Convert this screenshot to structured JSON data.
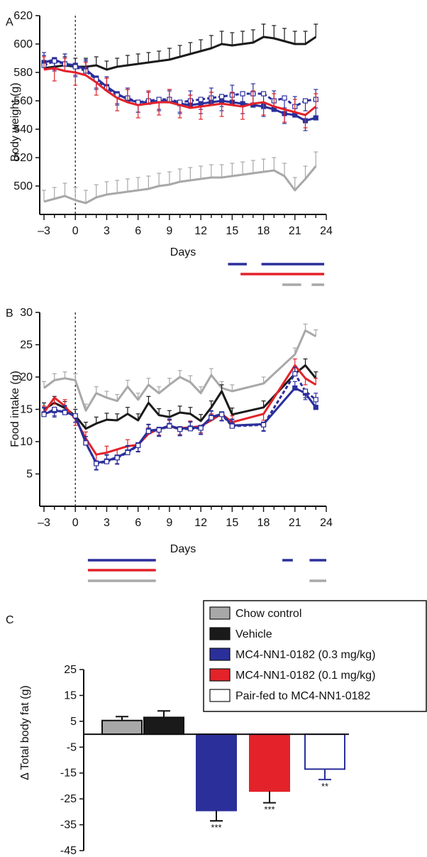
{
  "colors": {
    "chow": "#a8a8a8",
    "vehicle": "#1a1a1a",
    "high": "#2b2f9a",
    "low": "#e3222a",
    "pairfed": "#2b2f9a",
    "axis": "#111111"
  },
  "chart_data": [
    {
      "panel": "A",
      "type": "line",
      "xlabel": "Days",
      "ylabel": "Body weight (g)",
      "xlim": [
        -3,
        24
      ],
      "ylim": [
        480,
        620
      ],
      "xticks": [
        "–3",
        "0",
        "3",
        "6",
        "9",
        "12",
        "15",
        "18",
        "21",
        "24"
      ],
      "yticks": [
        "500",
        "520",
        "540",
        "560",
        "580",
        "600",
        "620"
      ],
      "series": [
        {
          "key": "vehicle",
          "x": [
            -3,
            -2,
            -1,
            0,
            1,
            2,
            3,
            4,
            5,
            6,
            7,
            8,
            9,
            10,
            11,
            12,
            13,
            14,
            15,
            16,
            17,
            18,
            19,
            20,
            21,
            22,
            23
          ],
          "y": [
            583,
            584,
            585,
            584,
            584,
            585,
            582,
            584,
            585,
            586,
            587,
            588,
            589,
            591,
            593,
            595,
            597,
            600,
            599,
            600,
            601,
            605,
            604,
            602,
            600,
            600,
            605
          ],
          "err": [
            5,
            6,
            6,
            6,
            6,
            6,
            6,
            6,
            7,
            7,
            7,
            7,
            8,
            8,
            8,
            8,
            9,
            9,
            9,
            9,
            9,
            9,
            9,
            9,
            9,
            9,
            9
          ],
          "dashed": false,
          "open": false
        },
        {
          "key": "chow",
          "x": [
            -3,
            -2,
            -1,
            0,
            1,
            2,
            3,
            4,
            5,
            6,
            7,
            8,
            9,
            10,
            11,
            12,
            13,
            14,
            15,
            16,
            17,
            18,
            19,
            20,
            21,
            22,
            23
          ],
          "y": [
            489,
            491,
            493,
            490,
            488,
            492,
            494,
            495,
            496,
            497,
            498,
            500,
            501,
            503,
            504,
            505,
            506,
            506,
            507,
            508,
            509,
            510,
            511,
            507,
            497,
            505,
            514
          ],
          "err": [
            8,
            8,
            9,
            9,
            9,
            9,
            9,
            9,
            9,
            9,
            9,
            9,
            9,
            9,
            9,
            9,
            9,
            9,
            9,
            9,
            9,
            9,
            9,
            9,
            9,
            9,
            10
          ],
          "dashed": false,
          "open": false
        },
        {
          "key": "high",
          "x": [
            -3,
            -2,
            -1,
            0,
            1,
            2,
            3,
            4,
            5,
            6,
            7,
            8,
            9,
            10,
            11,
            12,
            13,
            14,
            15,
            16,
            17,
            18,
            19,
            20,
            21,
            22,
            23
          ],
          "y": [
            587,
            589,
            586,
            585,
            582,
            576,
            570,
            565,
            561,
            559,
            559,
            560,
            560,
            558,
            557,
            558,
            559,
            560,
            559,
            558,
            557,
            556,
            554,
            551,
            550,
            546,
            548
          ],
          "err": [
            7,
            7,
            7,
            7,
            7,
            7,
            7,
            7,
            7,
            7,
            7,
            7,
            7,
            7,
            7,
            7,
            7,
            7,
            7,
            7,
            7,
            7,
            7,
            7,
            7,
            7,
            7
          ],
          "dashed": false,
          "open": false
        },
        {
          "key": "pairfed",
          "x": [
            -3,
            -2,
            -1,
            0,
            1,
            2,
            3,
            4,
            5,
            6,
            7,
            8,
            9,
            10,
            11,
            12,
            13,
            14,
            15,
            16,
            17,
            18,
            19,
            20,
            21,
            22,
            23
          ],
          "y": [
            585,
            588,
            586,
            584,
            581,
            575,
            569,
            564,
            562,
            559,
            560,
            561,
            561,
            559,
            560,
            561,
            562,
            563,
            564,
            565,
            565,
            565,
            560,
            562,
            556,
            560,
            561
          ],
          "err": [
            7,
            7,
            7,
            7,
            7,
            7,
            7,
            7,
            7,
            7,
            7,
            7,
            7,
            7,
            7,
            7,
            7,
            7,
            7,
            7,
            7,
            7,
            7,
            7,
            7,
            7,
            7
          ],
          "dashed": true,
          "open": true
        },
        {
          "key": "low",
          "x": [
            -3,
            -2,
            -1,
            0,
            1,
            2,
            3,
            4,
            5,
            6,
            7,
            8,
            9,
            10,
            11,
            12,
            13,
            14,
            15,
            16,
            17,
            18,
            19,
            20,
            21,
            22,
            23
          ],
          "y": [
            582,
            583,
            581,
            580,
            578,
            573,
            567,
            562,
            559,
            557,
            558,
            559,
            559,
            557,
            555,
            556,
            557,
            558,
            557,
            556,
            558,
            559,
            556,
            554,
            552,
            550,
            556
          ],
          "err": [
            9,
            9,
            9,
            9,
            9,
            9,
            9,
            9,
            9,
            9,
            9,
            9,
            9,
            9,
            9,
            9,
            9,
            9,
            9,
            9,
            9,
            9,
            9,
            9,
            9,
            9,
            9
          ],
          "dashed": false,
          "open": false
        }
      ],
      "significance_bars": [
        {
          "key": "high",
          "from": 14.6,
          "to": 16.4
        },
        {
          "key": "high",
          "from": 17.8,
          "to": 23.8
        },
        {
          "key": "low",
          "from": 15.8,
          "to": 23.8
        },
        {
          "key": "chow",
          "from": 19.8,
          "to": 21.6
        },
        {
          "key": "chow",
          "from": 22.6,
          "to": 23.8
        }
      ]
    },
    {
      "panel": "B",
      "type": "line",
      "xlabel": "Days",
      "ylabel": "Food intake (g)",
      "xlim": [
        -3,
        24
      ],
      "ylim": [
        0,
        30
      ],
      "xticks": [
        "–3",
        "0",
        "3",
        "6",
        "9",
        "12",
        "15",
        "18",
        "21",
        "24"
      ],
      "yticks": [
        "5",
        "10",
        "15",
        "20",
        "25",
        "30"
      ],
      "series": [
        {
          "key": "chow",
          "x": [
            -3,
            -2,
            -1,
            0,
            1,
            2,
            3,
            4,
            5,
            6,
            7,
            8,
            9,
            10,
            11,
            12,
            13,
            14,
            15,
            18,
            21,
            22,
            23
          ],
          "y": [
            18.3,
            19.5,
            19.8,
            19.5,
            14.8,
            17.5,
            16.8,
            16.3,
            18.5,
            16.5,
            18.8,
            17.5,
            18.8,
            20.0,
            19.2,
            17.5,
            20.3,
            18.3,
            17.8,
            19.0,
            23.5,
            27.2,
            26.3
          ],
          "err": [
            1,
            1,
            1,
            1,
            1,
            1,
            1,
            1,
            1,
            1,
            1,
            1,
            1,
            1,
            1,
            1,
            1,
            1,
            1,
            1,
            1,
            1,
            1
          ],
          "dashed": false,
          "open": false
        },
        {
          "key": "vehicle",
          "x": [
            -3,
            -2,
            -1,
            0,
            1,
            2,
            3,
            4,
            5,
            6,
            7,
            8,
            9,
            10,
            11,
            12,
            13,
            14,
            15,
            18,
            21,
            22,
            23
          ],
          "y": [
            15.0,
            16.0,
            15.2,
            14.0,
            12.0,
            12.8,
            13.4,
            13.3,
            14.3,
            13.3,
            16.0,
            14.1,
            13.8,
            14.5,
            14.3,
            13.2,
            15.3,
            17.8,
            14.2,
            15.3,
            20.5,
            21.8,
            19.8
          ],
          "err": [
            1,
            1,
            1,
            1,
            1,
            1,
            1,
            1,
            1,
            1,
            1,
            1,
            1,
            1,
            1,
            1,
            1,
            1,
            1,
            1,
            1,
            1,
            1
          ],
          "dashed": false,
          "open": false
        },
        {
          "key": "low",
          "x": [
            -3,
            -2,
            -1,
            0,
            1,
            2,
            3,
            4,
            5,
            6,
            7,
            8,
            9,
            10,
            11,
            12,
            13,
            14,
            15,
            18,
            21,
            22,
            23
          ],
          "y": [
            14.5,
            16.8,
            15.5,
            13.5,
            10.5,
            8.0,
            8.3,
            8.8,
            9.3,
            9.5,
            11.2,
            12.0,
            12.3,
            12.1,
            12.2,
            12.4,
            13.3,
            14.3,
            13.0,
            14.3,
            21.8,
            19.8,
            18.8
          ],
          "err": [
            1,
            1,
            1,
            1,
            1,
            1,
            1,
            1,
            1,
            1,
            1,
            1,
            1,
            1,
            1,
            1,
            1,
            1,
            1,
            1,
            1,
            1,
            1
          ],
          "dashed": false,
          "open": false
        },
        {
          "key": "high",
          "x": [
            -3,
            -2,
            -1,
            0,
            1,
            2,
            3,
            4,
            5,
            6,
            7,
            8,
            9,
            10,
            11,
            12,
            13,
            14,
            15,
            18,
            21,
            22,
            23
          ],
          "y": [
            14.3,
            14.8,
            14.6,
            14.0,
            9.8,
            6.7,
            7.0,
            7.6,
            8.4,
            9.5,
            11.7,
            11.9,
            12.5,
            12.0,
            12.1,
            12.2,
            13.8,
            14.3,
            12.5,
            12.7,
            18.3,
            17.5,
            15.3
          ],
          "err": [
            1,
            1,
            1,
            1,
            1,
            1,
            1,
            1,
            1,
            1,
            1,
            1,
            1,
            1,
            1,
            1,
            1,
            1,
            1,
            1,
            1,
            1,
            1
          ],
          "dashed": false,
          "open": false
        },
        {
          "key": "pairfed",
          "x": [
            -3,
            -2,
            -1,
            0,
            1,
            2,
            3,
            4,
            5,
            6,
            7,
            8,
            9,
            10,
            11,
            12,
            13,
            14,
            15,
            18,
            21,
            22,
            23
          ],
          "y": [
            14.2,
            15.0,
            14.5,
            14.0,
            9.8,
            6.6,
            6.9,
            7.5,
            8.3,
            9.4,
            11.6,
            11.8,
            12.4,
            11.9,
            12.0,
            12.1,
            13.7,
            14.2,
            12.4,
            12.6,
            20.5,
            17.8,
            16.5
          ],
          "err": [
            1,
            1,
            1,
            1,
            1,
            1,
            1,
            1,
            1,
            1,
            1,
            1,
            1,
            1,
            1,
            1,
            1,
            1,
            1,
            1,
            1,
            1,
            1
          ],
          "dashed": true,
          "open": true
        }
      ],
      "significance_bars": [
        {
          "key": "high",
          "from": 1.2,
          "to": 7.7
        },
        {
          "key": "low",
          "from": 1.2,
          "to": 7.7
        },
        {
          "key": "chow",
          "from": 1.2,
          "to": 7.7
        },
        {
          "key": "high",
          "from": 19.8,
          "to": 20.8
        },
        {
          "key": "high",
          "from": 22.4,
          "to": 24.0
        },
        {
          "key": "chow",
          "from": 22.4,
          "to": 24.0
        }
      ]
    },
    {
      "panel": "C",
      "type": "bar",
      "ylabel": "Δ Total body fat (g)",
      "ylim": [
        -45,
        25
      ],
      "yticks": [
        "25",
        "15",
        "5",
        "-5",
        "-15",
        "-25",
        "-35",
        "-45"
      ],
      "categories": [
        "Chow control",
        "Vehicle",
        "MC4-NN1-0182 (0.3 mg/kg)",
        "MC4-NN1-0182 (0.1 mg/kg)",
        "Pair-fed to MC4-NN1-0182"
      ],
      "keys": [
        "chow",
        "vehicle",
        "high",
        "low",
        "pairfed"
      ],
      "values": [
        5.3,
        6.5,
        -29.5,
        -22.0,
        -13.5
      ],
      "errors": [
        1.5,
        2.5,
        4.0,
        4.5,
        4.0
      ],
      "significance": [
        "",
        "",
        "***",
        "***",
        "**"
      ],
      "legend": [
        "Chow control",
        "Vehicle",
        "MC4-NN1-0182 (0.3 mg/kg)",
        "MC4-NN1-0182 (0.1 mg/kg)",
        "Pair-fed to MC4-NN1-0182"
      ]
    }
  ]
}
